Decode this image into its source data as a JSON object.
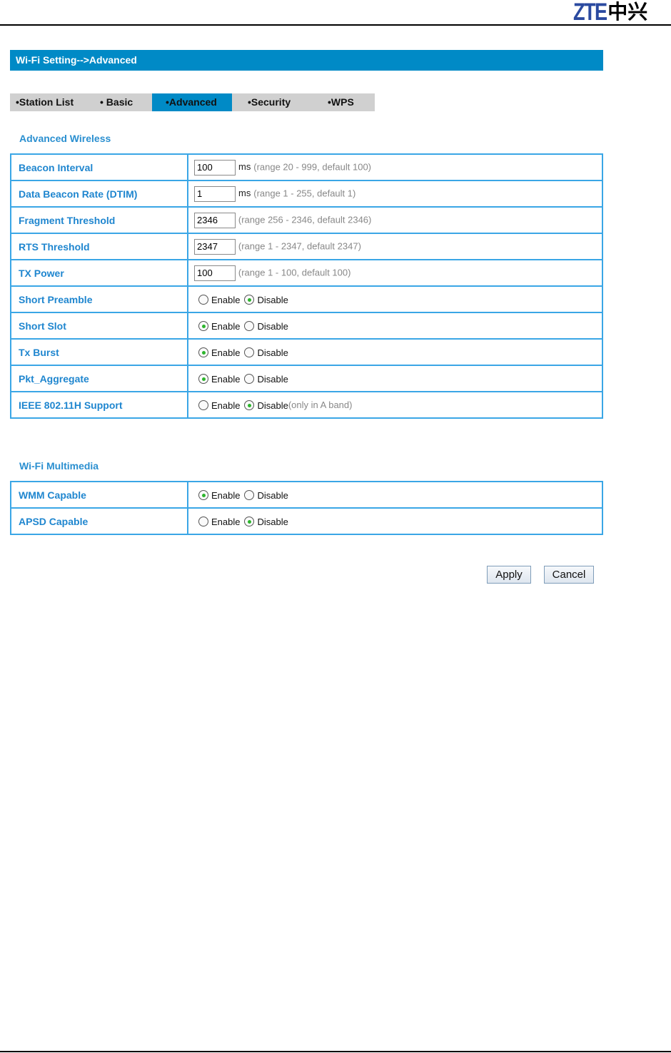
{
  "header": {
    "logo_text": "ZTE中兴"
  },
  "title": "Wi-Fi Setting-->Advanced",
  "tabs": [
    {
      "label": "•Station List",
      "active": false
    },
    {
      "label": "• Basic",
      "active": false
    },
    {
      "label": "•Advanced",
      "active": true
    },
    {
      "label": "•Security",
      "active": false
    },
    {
      "label": "•WPS",
      "active": false
    }
  ],
  "advanced_wireless": {
    "heading": "Advanced Wireless",
    "rows": [
      {
        "label": "Beacon Interval",
        "type": "text",
        "value": "100",
        "unit": "ms",
        "hint": "(range 20 - 999, default 100)"
      },
      {
        "label": "Data Beacon Rate (DTIM)",
        "type": "text",
        "value": "1",
        "unit": "ms",
        "hint": "(range 1 - 255, default 1)"
      },
      {
        "label": "Fragment Threshold",
        "type": "text",
        "value": "2346",
        "hint": "(range 256 - 2346, default 2346)"
      },
      {
        "label": "RTS Threshold",
        "type": "text",
        "value": "2347",
        "hint": "(range 1 - 2347, default 2347)"
      },
      {
        "label": "TX Power",
        "type": "text",
        "value": "100",
        "hint": "(range 1 - 100, default 100)"
      },
      {
        "label": "Short Preamble",
        "type": "radio",
        "selected": "Disable"
      },
      {
        "label": "Short Slot",
        "type": "radio",
        "selected": "Enable"
      },
      {
        "label": "Tx Burst",
        "type": "radio",
        "selected": "Enable"
      },
      {
        "label": "Pkt_Aggregate",
        "type": "radio",
        "selected": "Enable"
      },
      {
        "label": "IEEE 802.11H Support",
        "type": "radio",
        "selected": "Disable",
        "hint": "(only in A band)"
      }
    ]
  },
  "wifi_multimedia": {
    "heading": "Wi-Fi Multimedia",
    "rows": [
      {
        "label": "WMM Capable",
        "type": "radio",
        "selected": "Enable"
      },
      {
        "label": "APSD Capable",
        "type": "radio",
        "selected": "Disable"
      }
    ]
  },
  "radio_options": [
    "Enable",
    "Disable"
  ],
  "buttons": {
    "apply": "Apply",
    "cancel": "Cancel"
  },
  "colors": {
    "accent": "#008ac6",
    "label": "#1f86cf",
    "border": "#3aa6e6"
  }
}
